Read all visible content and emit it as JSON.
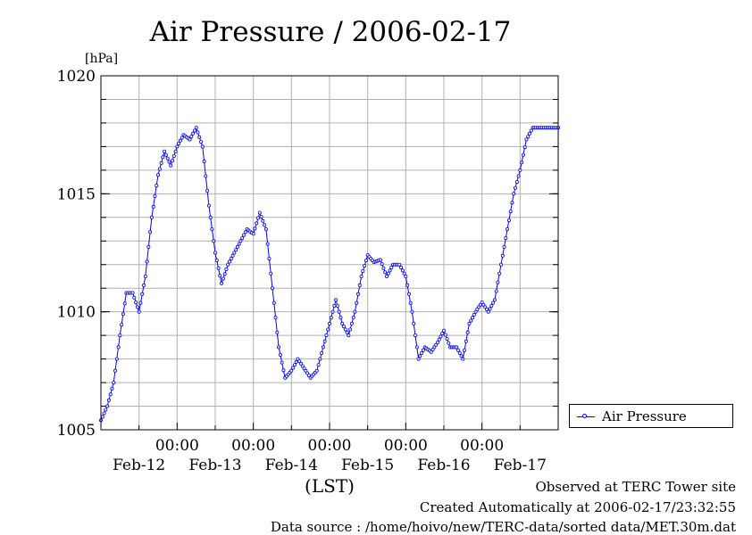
{
  "chart_data": {
    "type": "line",
    "title": "Air Pressure / 2006-02-17",
    "ylabel": "[hPa]",
    "xlabel": "(LST)",
    "ylim": [
      1005,
      1020
    ],
    "yticks": [
      1005,
      1010,
      1015,
      1020
    ],
    "xrange_hours": [
      0,
      144
    ],
    "xtick_time_labels": [
      "00:00",
      "00:00",
      "00:00",
      "00:00",
      "00:00"
    ],
    "xtick_date_labels": [
      "Feb-12",
      "Feb-13",
      "Feb-14",
      "Feb-15",
      "Feb-16",
      "Feb-17"
    ],
    "day_boundaries_hours": [
      24,
      48,
      72,
      96,
      120
    ],
    "grid": true,
    "legend_position": "right",
    "series": [
      {
        "name": "Air Pressure",
        "color": "#0000ff",
        "x_hours": [
          0,
          2,
          4,
          6,
          8,
          10,
          12,
          14,
          16,
          18,
          20,
          22,
          24,
          26,
          28,
          30,
          32,
          34,
          36,
          38,
          40,
          42,
          44,
          46,
          48,
          50,
          52,
          54,
          56,
          58,
          60,
          62,
          64,
          66,
          68,
          70,
          72,
          74,
          76,
          78,
          80,
          82,
          84,
          86,
          88,
          90,
          92,
          94,
          96,
          98,
          100,
          102,
          104,
          106,
          108,
          110,
          112,
          114,
          116,
          118,
          120,
          122,
          124,
          126,
          128,
          130,
          132,
          134,
          136,
          138,
          140,
          142,
          144
        ],
        "values": [
          1005.4,
          1006.0,
          1007.0,
          1009.0,
          1010.8,
          1010.8,
          1010.0,
          1011.5,
          1014.0,
          1015.8,
          1016.8,
          1016.2,
          1017.0,
          1017.5,
          1017.3,
          1017.8,
          1017.0,
          1014.5,
          1012.5,
          1011.2,
          1012.0,
          1012.5,
          1013.0,
          1013.5,
          1013.3,
          1014.2,
          1013.5,
          1011.0,
          1008.5,
          1007.2,
          1007.5,
          1008.0,
          1007.6,
          1007.2,
          1007.5,
          1008.5,
          1009.5,
          1010.5,
          1009.5,
          1009.0,
          1010.0,
          1011.5,
          1012.4,
          1012.1,
          1012.2,
          1011.5,
          1012.0,
          1012.0,
          1011.5,
          1010.0,
          1008.0,
          1008.5,
          1008.3,
          1008.7,
          1009.2,
          1008.5,
          1008.5,
          1008.0,
          1009.5,
          1010.0,
          1010.4,
          1010.0,
          1010.5,
          1012.0,
          1013.5,
          1015.0,
          1016.0,
          1017.3,
          1017.8,
          1017.8,
          1017.8,
          1017.8,
          1017.8
        ]
      }
    ]
  },
  "legend": {
    "label": "Air Pressure"
  },
  "footer": {
    "site": "Observed at TERC Tower site",
    "created": "Created Automatically at 2006-02-17/23:32:55",
    "source": "Data source : /home/hoivo/new/TERC-data/sorted  data/MET.30m.dat"
  }
}
